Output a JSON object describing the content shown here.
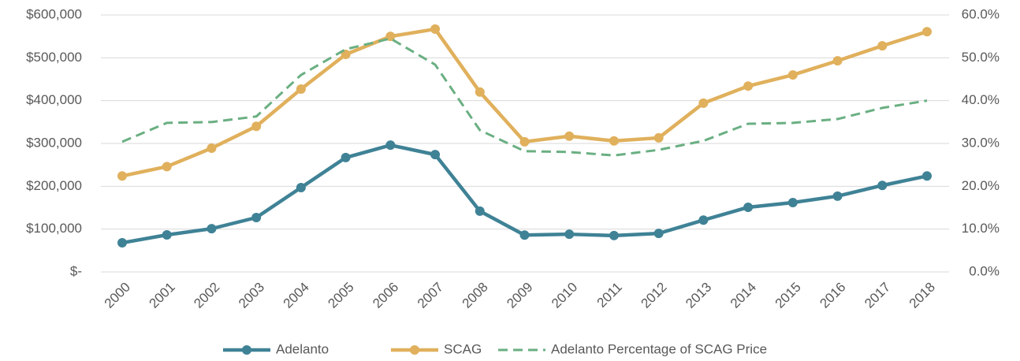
{
  "chart_data": {
    "type": "line",
    "categories": [
      "2000",
      "2001",
      "2002",
      "2003",
      "2004",
      "2005",
      "2006",
      "2007",
      "2008",
      "2009",
      "2010",
      "2011",
      "2012",
      "2013",
      "2014",
      "2015",
      "2016",
      "2017",
      "2018"
    ],
    "series": [
      {
        "name": "Adelanto",
        "color": "#3f8296",
        "marker": "circle",
        "values": [
          68000,
          86500,
          101000,
          127000,
          197000,
          267000,
          296000,
          274000,
          142000,
          86000,
          88000,
          85000,
          90000,
          121000,
          151000,
          162000,
          177000,
          202000,
          224000
        ]
      },
      {
        "name": "SCAG",
        "color": "#e0b05c",
        "marker": "circle",
        "values": [
          224000,
          246000,
          289000,
          340000,
          427000,
          508000,
          550000,
          567000,
          420000,
          304000,
          317000,
          306000,
          313000,
          394000,
          434000,
          460000,
          493000,
          528000,
          561000
        ]
      },
      {
        "name": "Adelanto Percentage of SCAG Price",
        "color": "#6aaf82",
        "dashed": true,
        "axis": "y2",
        "values": [
          30.4,
          34.8,
          35,
          36.3,
          46,
          52,
          54.5,
          48.4,
          33.1,
          28.2,
          28,
          27.2,
          28.5,
          30.6,
          34.6,
          34.8,
          35.7,
          38.3,
          40
        ]
      }
    ],
    "ylim": [
      0,
      600000
    ],
    "yticks": [
      {
        "value": 0,
        "label": "$-"
      },
      {
        "value": 100000,
        "label": "$100,000"
      },
      {
        "value": 200000,
        "label": "$200,000"
      },
      {
        "value": 300000,
        "label": "$300,000"
      },
      {
        "value": 400000,
        "label": "$400,000"
      },
      {
        "value": 500000,
        "label": "$500,000"
      },
      {
        "value": 600000,
        "label": "$600,000"
      }
    ],
    "y2lim": [
      0,
      60
    ],
    "y2ticks": [
      {
        "value": 0,
        "label": "0.0%"
      },
      {
        "value": 10,
        "label": "10.0%"
      },
      {
        "value": 20,
        "label": "20.0%"
      },
      {
        "value": 30,
        "label": "30.0%"
      },
      {
        "value": 40,
        "label": "40.0%"
      },
      {
        "value": 50,
        "label": "50.0%"
      },
      {
        "value": 60,
        "label": "60.0%"
      }
    ],
    "grid": true,
    "legend": "bottom"
  }
}
